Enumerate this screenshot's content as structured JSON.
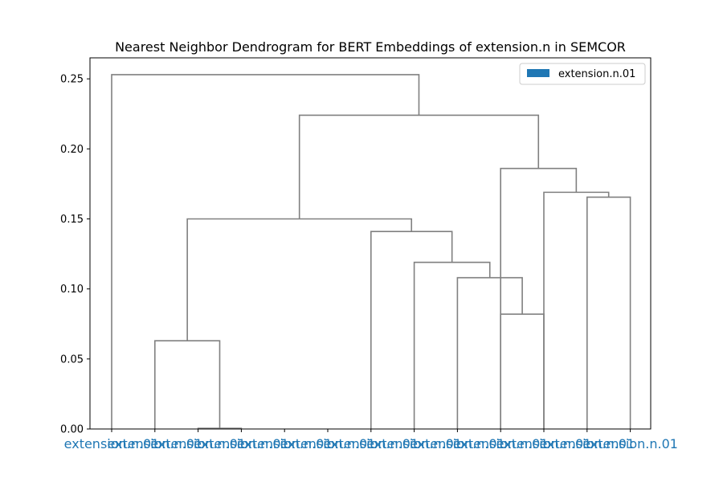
{
  "chart_data": {
    "type": "dendrogram",
    "title": "Nearest Neighbor Dendrogram for BERT Embeddings of extension.n in SEMCOR",
    "xlabel": "",
    "ylabel": "",
    "ylim": [
      0,
      0.265
    ],
    "yticks": [
      0.0,
      0.05,
      0.1,
      0.15,
      0.2,
      0.25
    ],
    "ytick_labels": [
      "0.00",
      "0.05",
      "0.10",
      "0.15",
      "0.20",
      "0.25"
    ],
    "grid": false,
    "legend": {
      "placement": "top-right",
      "entries": [
        {
          "label": "extension.n.01",
          "color": "#1f77b4"
        }
      ]
    },
    "leaf_label_color": "#1f77b4",
    "link_color": "#808080",
    "leaves": [
      "extension.n.01",
      "extension.n.01",
      "extension.n.01",
      "extension.n.01",
      "extension.n.01",
      "extension.n.01",
      "extension.n.01",
      "extension.n.01",
      "extension.n.01",
      "extension.n.01",
      "extension.n.01",
      "extension.n.01",
      "extension.n.01"
    ],
    "merges": [
      {
        "left": 2,
        "right": 3,
        "height": 0.0005
      },
      {
        "left": 9,
        "right": 10,
        "height": 0.082
      },
      {
        "left": 1,
        "right": 13,
        "height": 0.063
      },
      {
        "left": 8,
        "right": 14,
        "height": 0.108
      },
      {
        "left": 7,
        "right": 16,
        "height": 0.119
      },
      {
        "left": 6,
        "right": 17,
        "height": 0.141
      },
      {
        "left": 15,
        "right": 18,
        "height": 0.15
      },
      {
        "left": 11,
        "right": 12,
        "height": 0.1655
      },
      {
        "left": 10,
        "right": 20,
        "height": 0.169
      },
      {
        "left": 9,
        "right": 21,
        "height": 0.186
      },
      {
        "left": 19,
        "right": 22,
        "height": 0.224
      },
      {
        "left": 0,
        "right": 23,
        "height": 0.253
      }
    ]
  }
}
